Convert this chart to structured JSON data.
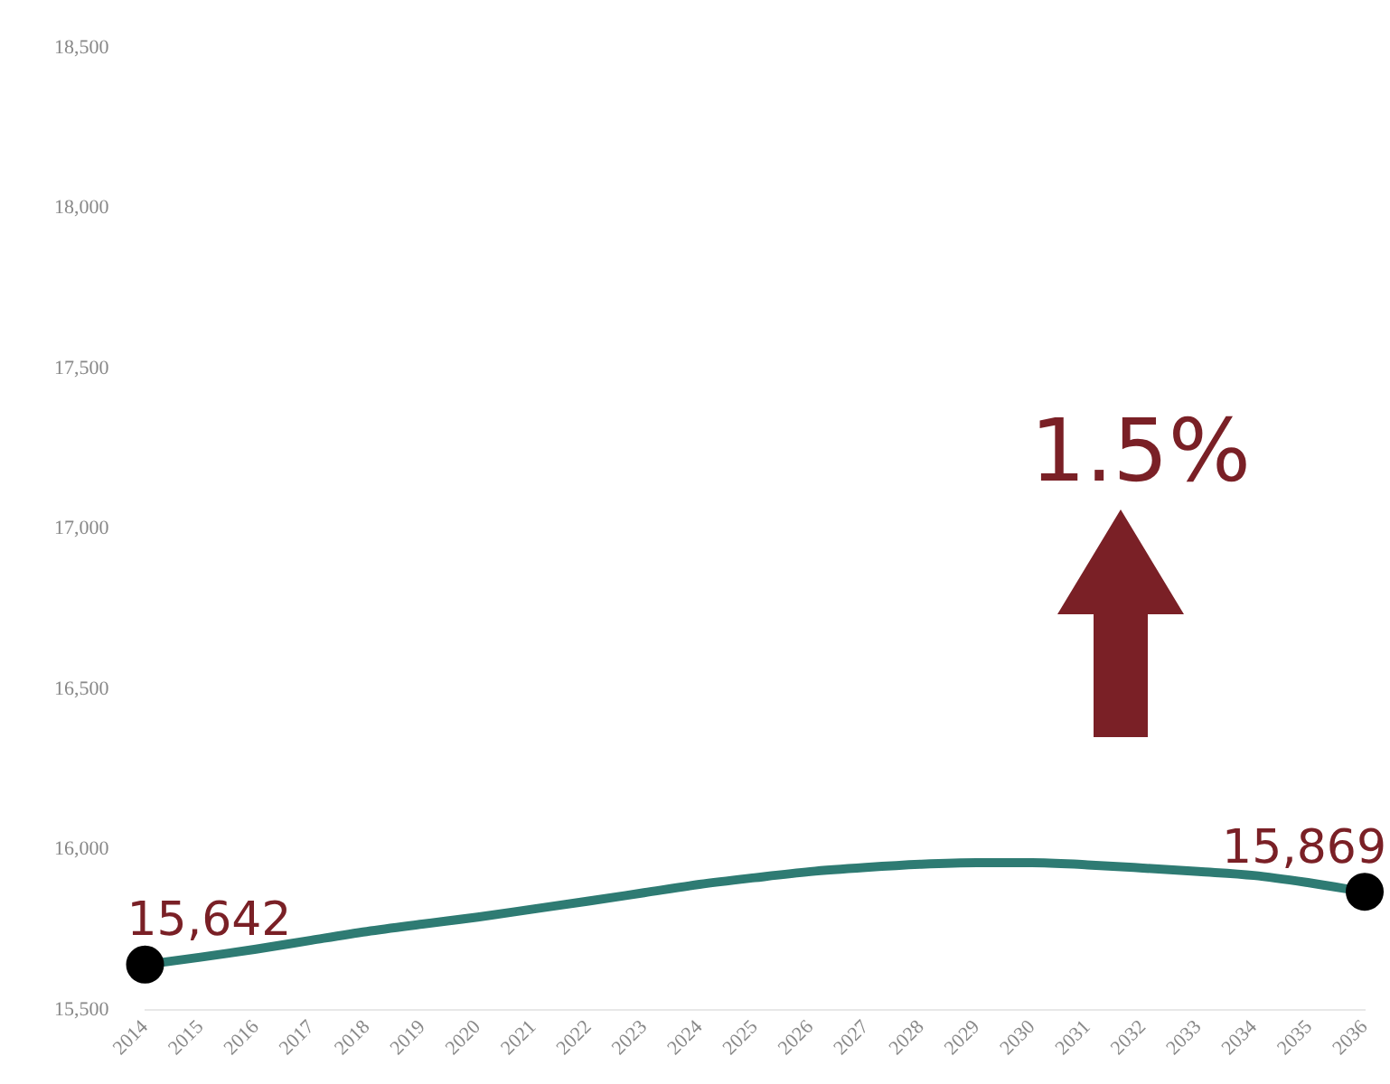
{
  "chart_data": {
    "type": "line",
    "categories": [
      "2014",
      "2015",
      "2016",
      "2017",
      "2018",
      "2019",
      "2020",
      "2021",
      "2022",
      "2023",
      "2024",
      "2025",
      "2026",
      "2027",
      "2028",
      "2029",
      "2030",
      "2031",
      "2032",
      "2033",
      "2034",
      "2035",
      "2036"
    ],
    "series": [
      {
        "color": "#2e7b73",
        "marker": "none",
        "values": [
          15642,
          15665,
          15690,
          15718,
          15745,
          15768,
          15790,
          15815,
          15840,
          15866,
          15892,
          15913,
          15932,
          15945,
          15955,
          15960,
          15960,
          15953,
          15943,
          15932,
          15920,
          15897,
          15869
        ]
      },
      {
        "type": "scatter",
        "color": "#000000",
        "marker": "circle",
        "values": [
          15642,
          null,
          null,
          null,
          null,
          null,
          null,
          null,
          null,
          null,
          null,
          null,
          null,
          null,
          null,
          null,
          null,
          null,
          null,
          null,
          null,
          null,
          15869
        ],
        "value_labels": [
          "15,642",
          null,
          null,
          null,
          null,
          null,
          null,
          null,
          null,
          null,
          null,
          null,
          null,
          null,
          null,
          null,
          null,
          null,
          null,
          null,
          null,
          null,
          "15,869"
        ]
      }
    ],
    "ylim": [
      15500,
      18500
    ],
    "yticks": [
      {
        "value": 15500,
        "label": "15,500"
      },
      {
        "value": 16000,
        "label": "16,000"
      },
      {
        "value": 16500,
        "label": "16,500"
      },
      {
        "value": 17000,
        "label": "17,000"
      },
      {
        "value": 17500,
        "label": "17,500"
      },
      {
        "value": 18000,
        "label": "18,000"
      },
      {
        "value": 18500,
        "label": "18,500"
      }
    ],
    "grid": false,
    "legend": false,
    "annotations": [
      "1.5%"
    ]
  }
}
